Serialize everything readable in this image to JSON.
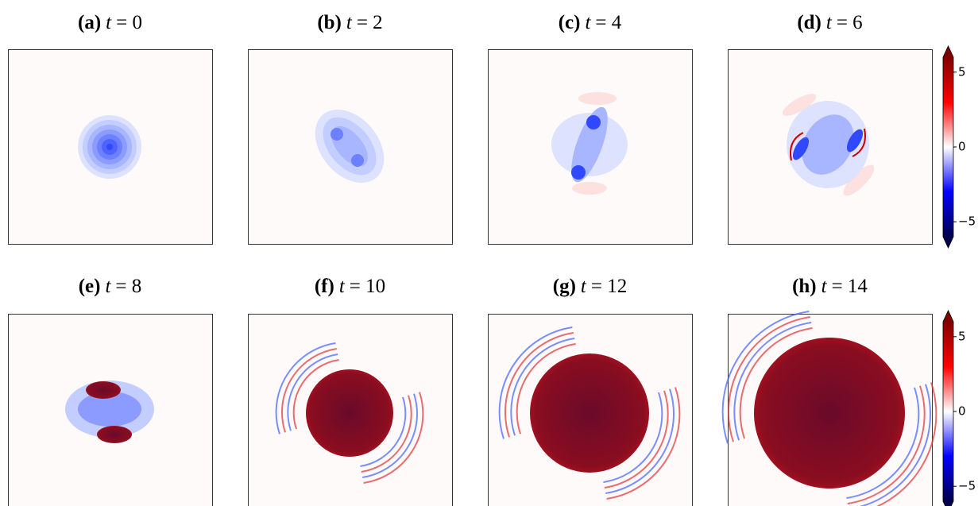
{
  "panels": [
    {
      "label": "(a)",
      "var": "t",
      "eq": "= 0"
    },
    {
      "label": "(b)",
      "var": "t",
      "eq": "= 2"
    },
    {
      "label": "(c)",
      "var": "t",
      "eq": "= 4"
    },
    {
      "label": "(d)",
      "var": "t",
      "eq": "= 6"
    },
    {
      "label": "(e)",
      "var": "t",
      "eq": "= 8"
    },
    {
      "label": "(f)",
      "var": "t",
      "eq": "= 10"
    },
    {
      "label": "(g)",
      "var": "t",
      "eq": "= 12"
    },
    {
      "label": "(h)",
      "var": "t",
      "eq": "= 14"
    }
  ],
  "colorbars": [
    {
      "lim": [
        -6,
        6
      ],
      "ticks": [
        5,
        0,
        {
          "value": -5,
          "label": "−5"
        }
      ]
    },
    {
      "lim": [
        -6,
        6
      ],
      "ticks": [
        5,
        0,
        {
          "value": -5,
          "label": "−5"
        }
      ]
    }
  ]
}
